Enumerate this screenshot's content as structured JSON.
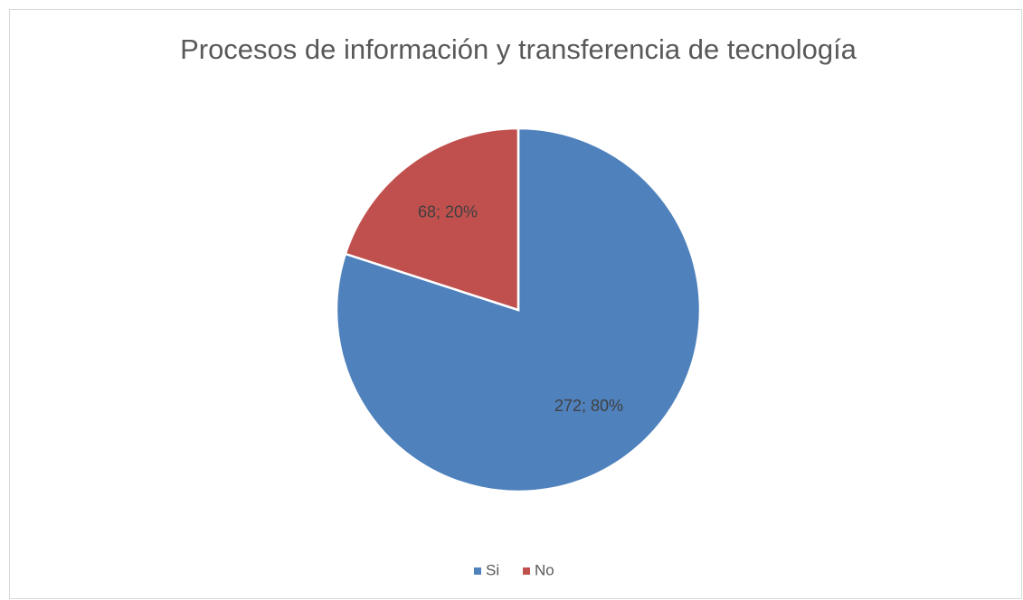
{
  "chart_data": {
    "type": "pie",
    "title": "Procesos de información y transferencia de tecnología",
    "categories": [
      "Si",
      "No"
    ],
    "values": [
      272,
      68
    ],
    "value_labels": [
      "272; 80%",
      "68; 20%"
    ],
    "colors": [
      "#4f81bd",
      "#c0504d"
    ],
    "legend": "bottom"
  }
}
